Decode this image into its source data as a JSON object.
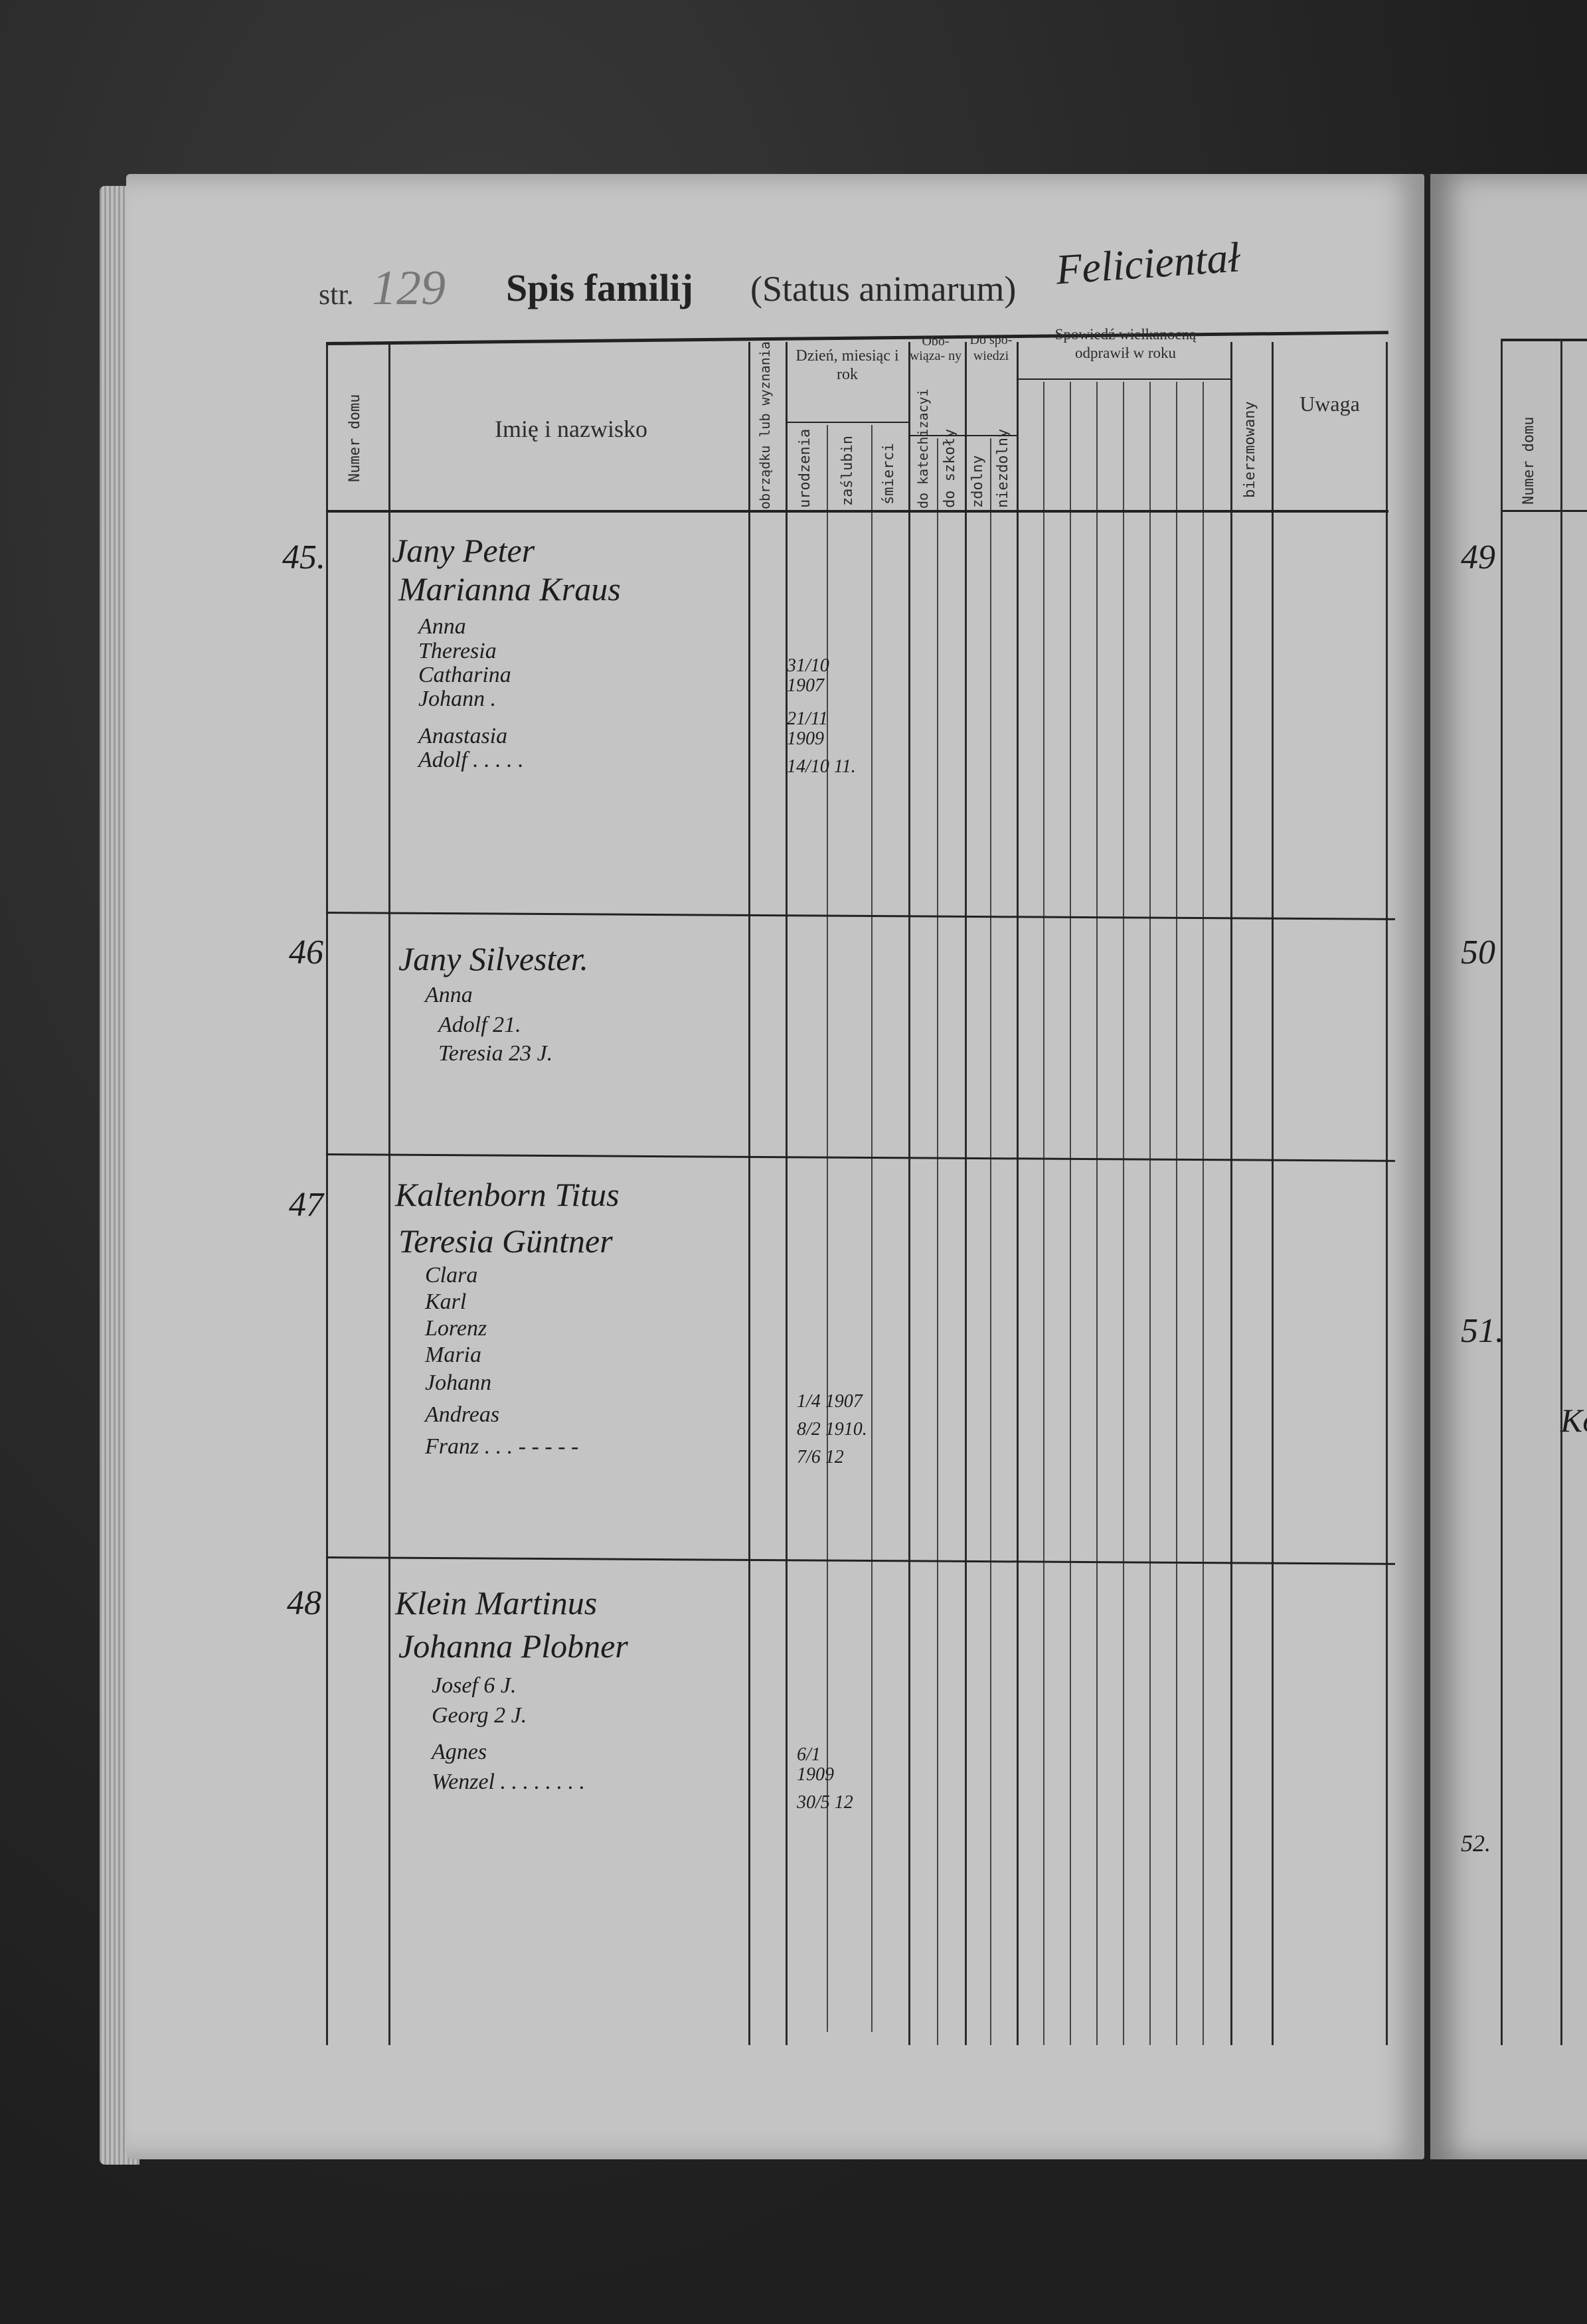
{
  "header": {
    "str_label": "str.",
    "page_number": "129",
    "title": "Spis familij",
    "subtitle": "(Status animarum)",
    "place": "Felicientał"
  },
  "columns": {
    "numer_domu": "Numer domu",
    "imie": "Imię i nazwisko",
    "obrzadek": "obrządku lub wyznania",
    "dzien_group": "Dzień, miesiąc i rok",
    "urodzenia": "urodzenia",
    "zaslubin": "zaślubin",
    "smierci": "śmierci",
    "obowiazany_group": "Obo- wiąza- ny",
    "katechizacyi": "do katechizacyi",
    "szkoly": "do szkoły",
    "spowiedzi_group": "Do spo- wiedzi",
    "zdolny": "zdolny",
    "niezdolny": "niezdolny",
    "spowiedz_group": "Spowiedź wielkanocną odprawił w roku",
    "bierzmowany": "bierzmowany",
    "uwaga": "Uwaga"
  },
  "rows": [
    {
      "house": "45.",
      "names": [
        "Jany Peter",
        "Marianna Kraus",
        "Anna",
        "Theresia",
        "Catharina",
        "Johann .",
        "Anastasia",
        "Adolf . . . . ."
      ],
      "dates": [
        "31/10 1907",
        "21/11 1909",
        "14/10 11."
      ]
    },
    {
      "house": "46",
      "names": [
        "Jany Silvester.",
        "Anna",
        "Adolf 21.",
        "Teresia 23 J."
      ],
      "dates": []
    },
    {
      "house": "47",
      "names": [
        "Kaltenborn Titus",
        "Teresia Güntner",
        "Clara",
        "Karl",
        "Lorenz",
        "Maria",
        "Johann",
        "Andreas",
        "Franz . . . - - - - -"
      ],
      "dates": [
        "1/4 1907",
        "8/2 1910.",
        "7/6 12"
      ]
    },
    {
      "house": "48",
      "names": [
        "Klein Martinus",
        "Johanna Plobner",
        "Josef 6 J.",
        "Georg 2 J.",
        "Agnes",
        "Wenzel . . . . . . . ."
      ],
      "dates": [
        "6/1 1909",
        "30/5 12"
      ]
    }
  ],
  "right_page": {
    "column_header": "Numer domu",
    "house_numbers": [
      "49",
      "50",
      "51.",
      "52."
    ],
    "partial_name": "Kolle"
  }
}
